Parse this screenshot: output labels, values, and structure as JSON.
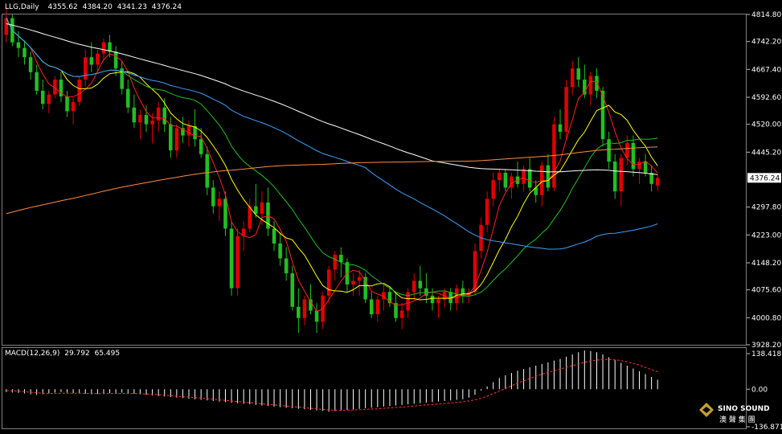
{
  "header": {
    "symbol": "LLG,Daily",
    "open": "4355.62",
    "high": "4384.20",
    "low": "4341.23",
    "close": "4376.24"
  },
  "price_axis": {
    "ticks": [
      "4814.80",
      "4742.20",
      "4667.40",
      "4592.60",
      "4520.00",
      "4445.20",
      "4297.80",
      "4223.00",
      "4148.20",
      "4075.60",
      "4000.80",
      "3928.20"
    ],
    "current_label": "4376.24"
  },
  "macd_panel": {
    "label": "MACD(12,26,9)",
    "value1": "29.792",
    "value2": "65.495",
    "ticks": [
      "138.418",
      "0.00",
      "-136.871"
    ]
  },
  "logo": {
    "text_top": "SINO SOUND",
    "text_bottom": "澳 聲 集 團"
  },
  "colors": {
    "background": "#000000",
    "grid": "#808080",
    "bull": "#e00000",
    "bear": "#20c020",
    "ma_fast": "#ff2020",
    "ma_5": "#ffff00",
    "ma_mid": "#20c020",
    "ma_blue": "#3aa0ff",
    "ma_white": "#ffffff",
    "ma_orange": "#ff8c40",
    "macd_bar": "#ffffff",
    "signal": "#ff3030"
  },
  "chart_data": {
    "type": "candlestick",
    "ylim": [
      3928.2,
      4814.8
    ],
    "macd_ylim": [
      -136.871,
      138.418
    ],
    "candles": [
      [
        4760,
        4830,
        4740,
        4805
      ],
      [
        4805,
        4815,
        4730,
        4740
      ],
      [
        4740,
        4770,
        4700,
        4725
      ],
      [
        4725,
        4745,
        4680,
        4700
      ],
      [
        4700,
        4715,
        4640,
        4660
      ],
      [
        4660,
        4680,
        4600,
        4610
      ],
      [
        4610,
        4640,
        4560,
        4575
      ],
      [
        4575,
        4610,
        4550,
        4600
      ],
      [
        4600,
        4650,
        4590,
        4640
      ],
      [
        4640,
        4660,
        4580,
        4595
      ],
      [
        4595,
        4610,
        4540,
        4555
      ],
      [
        4555,
        4590,
        4520,
        4580
      ],
      [
        4580,
        4650,
        4570,
        4640
      ],
      [
        4640,
        4720,
        4620,
        4700
      ],
      [
        4700,
        4740,
        4660,
        4680
      ],
      [
        4680,
        4720,
        4660,
        4710
      ],
      [
        4710,
        4750,
        4690,
        4740
      ],
      [
        4740,
        4760,
        4700,
        4715
      ],
      [
        4715,
        4730,
        4650,
        4670
      ],
      [
        4670,
        4690,
        4600,
        4615
      ],
      [
        4615,
        4640,
        4550,
        4565
      ],
      [
        4565,
        4600,
        4510,
        4525
      ],
      [
        4525,
        4560,
        4480,
        4545
      ],
      [
        4545,
        4570,
        4500,
        4520
      ],
      [
        4520,
        4550,
        4470,
        4530
      ],
      [
        4530,
        4580,
        4500,
        4565
      ],
      [
        4565,
        4590,
        4500,
        4520
      ],
      [
        4520,
        4540,
        4430,
        4450
      ],
      [
        4450,
        4520,
        4430,
        4510
      ],
      [
        4510,
        4540,
        4470,
        4490
      ],
      [
        4490,
        4530,
        4460,
        4515
      ],
      [
        4515,
        4560,
        4460,
        4480
      ],
      [
        4480,
        4510,
        4430,
        4440
      ],
      [
        4440,
        4460,
        4330,
        4350
      ],
      [
        4350,
        4370,
        4280,
        4300
      ],
      [
        4300,
        4340,
        4260,
        4320
      ],
      [
        4320,
        4340,
        4220,
        4240
      ],
      [
        4240,
        4260,
        4060,
        4080
      ],
      [
        4080,
        4240,
        4060,
        4220
      ],
      [
        4220,
        4260,
        4180,
        4240
      ],
      [
        4240,
        4320,
        4230,
        4300
      ],
      [
        4300,
        4360,
        4270,
        4280
      ],
      [
        4280,
        4340,
        4250,
        4310
      ],
      [
        4310,
        4350,
        4220,
        4240
      ],
      [
        4240,
        4260,
        4180,
        4200
      ],
      [
        4200,
        4230,
        4140,
        4160
      ],
      [
        4160,
        4190,
        4100,
        4120
      ],
      [
        4120,
        4140,
        4020,
        4030
      ],
      [
        4030,
        4080,
        3960,
        4000
      ],
      [
        4000,
        4060,
        3980,
        4050
      ],
      [
        4050,
        4090,
        4010,
        4020
      ],
      [
        4020,
        4040,
        3960,
        3990
      ],
      [
        3990,
        4070,
        3970,
        4060
      ],
      [
        4060,
        4140,
        4040,
        4130
      ],
      [
        4130,
        4180,
        4100,
        4170
      ],
      [
        4170,
        4190,
        4110,
        4150
      ],
      [
        4150,
        4160,
        4070,
        4090
      ],
      [
        4090,
        4120,
        4060,
        4100
      ],
      [
        4100,
        4130,
        4060,
        4110
      ],
      [
        4110,
        4120,
        4040,
        4050
      ],
      [
        4050,
        4070,
        4000,
        4010
      ],
      [
        4010,
        4060,
        3990,
        4050
      ],
      [
        4050,
        4090,
        4020,
        4070
      ],
      [
        4070,
        4080,
        4030,
        4040
      ],
      [
        4040,
        4070,
        3990,
        4000
      ],
      [
        4000,
        4040,
        3970,
        4020
      ],
      [
        4020,
        4080,
        4000,
        4070
      ],
      [
        4070,
        4120,
        4050,
        4100
      ],
      [
        4100,
        4140,
        4060,
        4080
      ],
      [
        4080,
        4120,
        4040,
        4060
      ],
      [
        4060,
        4080,
        4020,
        4040
      ],
      [
        4040,
        4060,
        4000,
        4050
      ],
      [
        4050,
        4080,
        4030,
        4070
      ],
      [
        4070,
        4080,
        4020,
        4040
      ],
      [
        4040,
        4090,
        4020,
        4080
      ],
      [
        4080,
        4100,
        4040,
        4060
      ],
      [
        4060,
        4080,
        4040,
        4070
      ],
      [
        4070,
        4200,
        4060,
        4180
      ],
      [
        4180,
        4270,
        4160,
        4250
      ],
      [
        4250,
        4340,
        4230,
        4320
      ],
      [
        4320,
        4390,
        4300,
        4370
      ],
      [
        4370,
        4400,
        4340,
        4390
      ],
      [
        4390,
        4400,
        4340,
        4350
      ],
      [
        4350,
        4390,
        4320,
        4380
      ],
      [
        4380,
        4420,
        4350,
        4360
      ],
      [
        4360,
        4410,
        4340,
        4400
      ],
      [
        4400,
        4430,
        4340,
        4350
      ],
      [
        4350,
        4370,
        4310,
        4330
      ],
      [
        4330,
        4420,
        4300,
        4410
      ],
      [
        4410,
        4440,
        4340,
        4350
      ],
      [
        4350,
        4540,
        4340,
        4520
      ],
      [
        4520,
        4560,
        4480,
        4500
      ],
      [
        4500,
        4640,
        4480,
        4620
      ],
      [
        4620,
        4690,
        4600,
        4670
      ],
      [
        4670,
        4700,
        4620,
        4640
      ],
      [
        4640,
        4680,
        4590,
        4600
      ],
      [
        4600,
        4660,
        4570,
        4650
      ],
      [
        4650,
        4670,
        4590,
        4610
      ],
      [
        4610,
        4620,
        4460,
        4480
      ],
      [
        4480,
        4500,
        4400,
        4420
      ],
      [
        4420,
        4440,
        4320,
        4340
      ],
      [
        4340,
        4440,
        4300,
        4430
      ],
      [
        4430,
        4490,
        4410,
        4470
      ],
      [
        4470,
        4490,
        4380,
        4400
      ],
      [
        4400,
        4430,
        4360,
        4420
      ],
      [
        4420,
        4440,
        4380,
        4390
      ],
      [
        4390,
        4410,
        4340,
        4360
      ],
      [
        4355.62,
        4384.2,
        4341.23,
        4376.24
      ]
    ],
    "ma_periods": [
      5,
      10,
      20,
      60,
      120,
      250
    ],
    "macd": [
      -10,
      -12,
      -13,
      -15,
      -18,
      -20,
      -18,
      -15,
      -12,
      -10,
      -12,
      -14,
      -15,
      -16,
      -18,
      -17,
      -15,
      -14,
      -13,
      -12,
      -14,
      -16,
      -18,
      -20,
      -22,
      -24,
      -26,
      -28,
      -30,
      -32,
      -34,
      -36,
      -38,
      -40,
      -42,
      -44,
      -46,
      -48,
      -50,
      -52,
      -54,
      -56,
      -58,
      -60,
      -62,
      -64,
      -66,
      -68,
      -70,
      -72,
      -74,
      -76,
      -78,
      -80,
      -78,
      -76,
      -74,
      -72,
      -70,
      -68,
      -66,
      -64,
      -62,
      -60,
      -58,
      -56,
      -54,
      -52,
      -50,
      -48,
      -46,
      -44,
      -42,
      -40,
      -38,
      -36,
      -30,
      -20,
      -5,
      10,
      25,
      40,
      50,
      58,
      66,
      72,
      78,
      84,
      90,
      96,
      102,
      108,
      116,
      124,
      132,
      138,
      136,
      132,
      124,
      114,
      104,
      94,
      84,
      74,
      64,
      54,
      44,
      34
    ],
    "signal": [
      -5,
      -6,
      -7,
      -9,
      -11,
      -13,
      -14,
      -15,
      -15,
      -14,
      -14,
      -14,
      -14,
      -15,
      -15,
      -16,
      -16,
      -16,
      -15,
      -15,
      -15,
      -15,
      -16,
      -17,
      -18,
      -20,
      -21,
      -23,
      -25,
      -27,
      -28,
      -30,
      -32,
      -34,
      -36,
      -38,
      -40,
      -42,
      -44,
      -46,
      -48,
      -50,
      -52,
      -54,
      -56,
      -58,
      -60,
      -62,
      -64,
      -66,
      -68,
      -70,
      -72,
      -74,
      -75,
      -75,
      -75,
      -74,
      -73,
      -72,
      -71,
      -70,
      -68,
      -67,
      -65,
      -64,
      -62,
      -60,
      -58,
      -56,
      -55,
      -53,
      -51,
      -49,
      -47,
      -45,
      -42,
      -38,
      -32,
      -25,
      -16,
      -7,
      2,
      12,
      22,
      30,
      38,
      46,
      54,
      60,
      66,
      72,
      78,
      84,
      90,
      96,
      100,
      104,
      106,
      106,
      105,
      102,
      98,
      92,
      86,
      78,
      70,
      62
    ]
  }
}
